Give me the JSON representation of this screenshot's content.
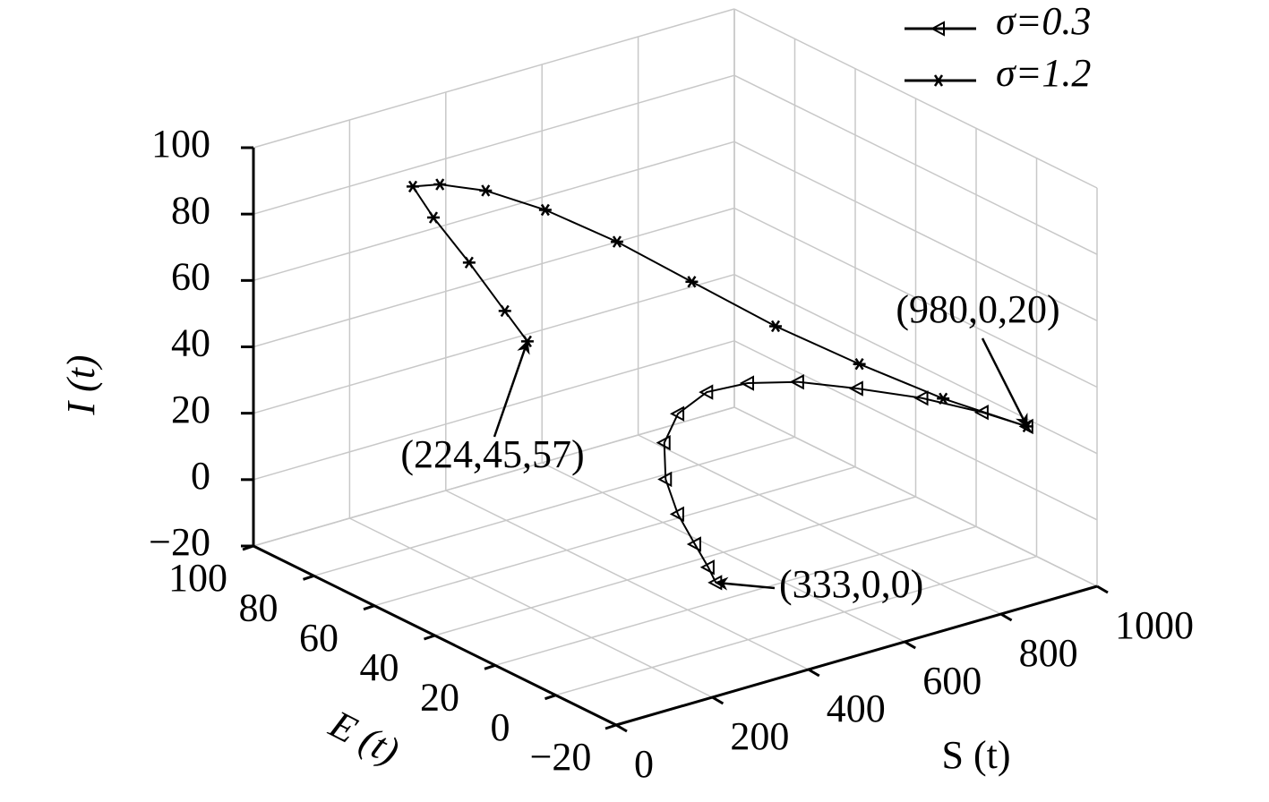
{
  "chart_data": {
    "type": "line3d",
    "xlabel": "S (t)",
    "ylabel": "E (t)",
    "zlabel": "I (t)",
    "xlim": [
      0,
      1000
    ],
    "ylim": [
      -20,
      100
    ],
    "zlim": [
      -20,
      100
    ],
    "xticks": [
      0,
      200,
      400,
      600,
      800,
      1000
    ],
    "yticks": [
      {
        "value": -20,
        "label": "−20"
      },
      0,
      20,
      40,
      60,
      80,
      100
    ],
    "zticks": [
      {
        "value": -20,
        "label": "−20"
      },
      0,
      20,
      40,
      60,
      80,
      100
    ],
    "grid": true,
    "legend": "upper right",
    "series": [
      {
        "name": "σ=0.3",
        "color": "#000000",
        "marker": "triangle-left",
        "x": [
          980,
          950,
          900,
          840,
          780,
          720,
          660,
          600,
          540,
          480,
          430,
          390,
          355,
          333
        ],
        "y": [
          0,
          10,
          22,
          34,
          44,
          51,
          55,
          55,
          50,
          40,
          28,
          16,
          6,
          0
        ],
        "z": [
          20,
          21,
          22,
          22,
          22,
          21,
          19,
          15,
          11,
          7,
          4,
          2,
          1,
          0
        ]
      },
      {
        "name": "σ=1.2",
        "color": "#000000",
        "marker": "asterisk",
        "x": [
          980,
          900,
          820,
          740,
          660,
          580,
          500,
          420,
          350,
          300,
          280,
          260,
          240,
          224
        ],
        "y": [
          0,
          15,
          30,
          45,
          60,
          72,
          83,
          90,
          94,
          95,
          85,
          70,
          55,
          45
        ],
        "z": [
          20,
          25,
          32,
          40,
          50,
          60,
          68,
          74,
          77,
          78,
          74,
          68,
          61,
          57
        ]
      }
    ],
    "annotations": [
      {
        "text": "(980,0,20)"
      },
      {
        "text": "(224,45,57)"
      },
      {
        "text": "(333,0,0)"
      }
    ]
  }
}
